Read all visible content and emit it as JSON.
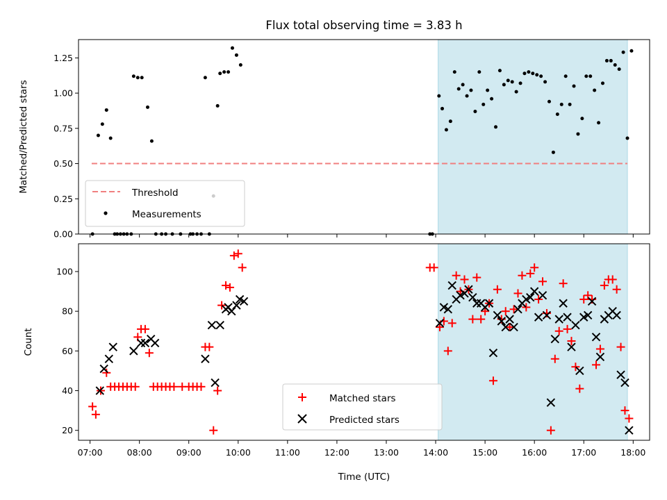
{
  "chart_data": [
    {
      "type": "scatter",
      "title": "Flux total observing time = 3.83 h",
      "xlabel": "",
      "ylabel": "Matched/Predicted stars",
      "xlim": [
        "06:46",
        "18:20"
      ],
      "ylim": [
        0,
        1.38
      ],
      "yticks": [
        0.0,
        0.25,
        0.5,
        0.75,
        1.0,
        1.25
      ],
      "grid": false,
      "legend_position": "lower-left",
      "highlight_span": {
        "start": "14:03",
        "end": "17:53",
        "color": "#add8e6"
      },
      "threshold": {
        "name": "Threshold",
        "value": 0.5,
        "start": "07:02",
        "end": "17:53",
        "color": "#f07f7f",
        "style": "dashed"
      },
      "series": [
        {
          "name": "Measurements",
          "color": "#000000",
          "marker": "dot",
          "points": [
            [
              "07:03",
              0.0
            ],
            [
              "07:10",
              0.7
            ],
            [
              "07:15",
              0.78
            ],
            [
              "07:20",
              0.88
            ],
            [
              "07:25",
              0.68
            ],
            [
              "07:30",
              0.0
            ],
            [
              "07:33",
              0.0
            ],
            [
              "07:37",
              0.0
            ],
            [
              "07:41",
              0.0
            ],
            [
              "07:45",
              0.0
            ],
            [
              "07:50",
              0.0
            ],
            [
              "07:53",
              1.12
            ],
            [
              "07:58",
              1.11
            ],
            [
              "08:03",
              1.11
            ],
            [
              "08:10",
              0.9
            ],
            [
              "08:15",
              0.66
            ],
            [
              "08:20",
              0.0
            ],
            [
              "08:27",
              0.0
            ],
            [
              "08:32",
              0.0
            ],
            [
              "08:40",
              0.0
            ],
            [
              "08:50",
              0.0
            ],
            [
              "09:02",
              0.0
            ],
            [
              "09:05",
              0.0
            ],
            [
              "09:10",
              0.0
            ],
            [
              "09:15",
              0.0
            ],
            [
              "09:20",
              1.11
            ],
            [
              "09:25",
              0.0
            ],
            [
              "09:30",
              0.27
            ],
            [
              "09:35",
              0.91
            ],
            [
              "09:38",
              1.14
            ],
            [
              "09:43",
              1.15
            ],
            [
              "09:48",
              1.15
            ],
            [
              "09:53",
              1.32
            ],
            [
              "09:58",
              1.27
            ],
            [
              "10:03",
              1.2
            ],
            [
              "13:53",
              0.0
            ],
            [
              "13:56",
              0.0
            ],
            [
              "14:04",
              0.98
            ],
            [
              "14:08",
              0.89
            ],
            [
              "14:13",
              0.74
            ],
            [
              "14:18",
              0.8
            ],
            [
              "14:23",
              1.15
            ],
            [
              "14:28",
              1.03
            ],
            [
              "14:33",
              1.06
            ],
            [
              "14:38",
              0.98
            ],
            [
              "14:43",
              1.02
            ],
            [
              "14:48",
              0.87
            ],
            [
              "14:53",
              1.15
            ],
            [
              "14:58",
              0.92
            ],
            [
              "15:03",
              1.02
            ],
            [
              "15:08",
              0.96
            ],
            [
              "15:13",
              0.76
            ],
            [
              "15:18",
              1.16
            ],
            [
              "15:23",
              1.06
            ],
            [
              "15:28",
              1.09
            ],
            [
              "15:33",
              1.08
            ],
            [
              "15:38",
              1.01
            ],
            [
              "15:43",
              1.07
            ],
            [
              "15:48",
              1.14
            ],
            [
              "15:53",
              1.15
            ],
            [
              "15:58",
              1.14
            ],
            [
              "16:03",
              1.13
            ],
            [
              "16:08",
              1.12
            ],
            [
              "16:13",
              1.08
            ],
            [
              "16:18",
              0.94
            ],
            [
              "16:23",
              0.58
            ],
            [
              "16:28",
              0.85
            ],
            [
              "16:33",
              0.92
            ],
            [
              "16:38",
              1.12
            ],
            [
              "16:43",
              0.92
            ],
            [
              "16:48",
              1.05
            ],
            [
              "16:53",
              0.71
            ],
            [
              "16:58",
              0.82
            ],
            [
              "17:03",
              1.12
            ],
            [
              "17:08",
              1.12
            ],
            [
              "17:13",
              1.02
            ],
            [
              "17:18",
              0.79
            ],
            [
              "17:23",
              1.07
            ],
            [
              "17:28",
              1.23
            ],
            [
              "17:33",
              1.23
            ],
            [
              "17:38",
              1.2
            ],
            [
              "17:43",
              1.17
            ],
            [
              "17:48",
              1.29
            ],
            [
              "17:53",
              0.68
            ],
            [
              "17:58",
              1.3
            ]
          ]
        }
      ]
    },
    {
      "type": "scatter",
      "title": "",
      "xlabel": "Time (UTC)",
      "ylabel": "Count",
      "xlim": [
        "06:46",
        "18:20"
      ],
      "ylim": [
        15,
        114
      ],
      "yticks": [
        20,
        40,
        60,
        80,
        100
      ],
      "xticks": [
        "07:00",
        "08:00",
        "09:00",
        "10:00",
        "11:00",
        "12:00",
        "13:00",
        "14:00",
        "15:00",
        "16:00",
        "17:00",
        "18:00"
      ],
      "grid": false,
      "legend_position": "lower-center",
      "highlight_span": {
        "start": "14:03",
        "end": "17:53",
        "color": "#add8e6"
      },
      "series": [
        {
          "name": "Matched stars",
          "color": "#ff0000",
          "marker": "plus",
          "points": [
            [
              "07:03",
              32
            ],
            [
              "07:07",
              28
            ],
            [
              "07:13",
              40
            ],
            [
              "07:20",
              49
            ],
            [
              "07:25",
              42
            ],
            [
              "07:30",
              42
            ],
            [
              "07:35",
              42
            ],
            [
              "07:40",
              42
            ],
            [
              "07:45",
              42
            ],
            [
              "07:50",
              42
            ],
            [
              "07:55",
              42
            ],
            [
              "07:58",
              67
            ],
            [
              "08:02",
              71
            ],
            [
              "08:07",
              71
            ],
            [
              "08:12",
              59
            ],
            [
              "08:17",
              42
            ],
            [
              "08:22",
              42
            ],
            [
              "08:27",
              42
            ],
            [
              "08:32",
              42
            ],
            [
              "08:37",
              42
            ],
            [
              "08:42",
              42
            ],
            [
              "08:52",
              42
            ],
            [
              "09:00",
              42
            ],
            [
              "09:05",
              42
            ],
            [
              "09:10",
              42
            ],
            [
              "09:15",
              42
            ],
            [
              "09:20",
              62
            ],
            [
              "09:25",
              62
            ],
            [
              "09:30",
              20
            ],
            [
              "09:35",
              40
            ],
            [
              "09:40",
              83
            ],
            [
              "09:45",
              93
            ],
            [
              "09:50",
              92
            ],
            [
              "09:55",
              108
            ],
            [
              "10:00",
              109
            ],
            [
              "10:05",
              102
            ],
            [
              "13:53",
              102
            ],
            [
              "13:58",
              102
            ],
            [
              "14:05",
              72
            ],
            [
              "14:10",
              75
            ],
            [
              "14:15",
              60
            ],
            [
              "14:20",
              74
            ],
            [
              "14:25",
              98
            ],
            [
              "14:30",
              90
            ],
            [
              "14:35",
              96
            ],
            [
              "14:40",
              91
            ],
            [
              "14:45",
              76
            ],
            [
              "14:50",
              97
            ],
            [
              "14:55",
              76
            ],
            [
              "15:00",
              80
            ],
            [
              "15:05",
              84
            ],
            [
              "15:10",
              45
            ],
            [
              "15:15",
              91
            ],
            [
              "15:20",
              76
            ],
            [
              "15:25",
              80
            ],
            [
              "15:30",
              72
            ],
            [
              "15:35",
              81
            ],
            [
              "15:40",
              89
            ],
            [
              "15:45",
              98
            ],
            [
              "15:50",
              82
            ],
            [
              "15:55",
              99
            ],
            [
              "16:00",
              102
            ],
            [
              "16:05",
              86
            ],
            [
              "16:10",
              95
            ],
            [
              "16:15",
              79
            ],
            [
              "16:20",
              20
            ],
            [
              "16:25",
              56
            ],
            [
              "16:30",
              70
            ],
            [
              "16:35",
              94
            ],
            [
              "16:40",
              71
            ],
            [
              "16:45",
              65
            ],
            [
              "16:50",
              52
            ],
            [
              "16:55",
              41
            ],
            [
              "17:00",
              86
            ],
            [
              "17:05",
              88
            ],
            [
              "17:10",
              86
            ],
            [
              "17:15",
              53
            ],
            [
              "17:20",
              61
            ],
            [
              "17:25",
              93
            ],
            [
              "17:30",
              96
            ],
            [
              "17:35",
              96
            ],
            [
              "17:40",
              91
            ],
            [
              "17:45",
              62
            ],
            [
              "17:50",
              30
            ],
            [
              "17:55",
              26
            ]
          ]
        },
        {
          "name": "Predicted stars",
          "color": "#000000",
          "marker": "x",
          "points": [
            [
              "07:12",
              40
            ],
            [
              "07:17",
              51
            ],
            [
              "07:23",
              56
            ],
            [
              "07:28",
              62
            ],
            [
              "07:53",
              60
            ],
            [
              "08:02",
              64
            ],
            [
              "08:07",
              64
            ],
            [
              "08:14",
              66
            ],
            [
              "08:19",
              64
            ],
            [
              "09:20",
              56
            ],
            [
              "09:28",
              73
            ],
            [
              "09:32",
              44
            ],
            [
              "09:38",
              73
            ],
            [
              "09:45",
              81
            ],
            [
              "09:48",
              82
            ],
            [
              "09:52",
              80
            ],
            [
              "09:58",
              83
            ],
            [
              "10:02",
              86
            ],
            [
              "10:07",
              85
            ],
            [
              "14:05",
              74
            ],
            [
              "14:10",
              82
            ],
            [
              "14:15",
              81
            ],
            [
              "14:20",
              93
            ],
            [
              "14:25",
              86
            ],
            [
              "14:30",
              88
            ],
            [
              "14:35",
              89
            ],
            [
              "14:40",
              91
            ],
            [
              "14:45",
              87
            ],
            [
              "14:50",
              84
            ],
            [
              "14:55",
              84
            ],
            [
              "15:00",
              82
            ],
            [
              "15:05",
              84
            ],
            [
              "15:10",
              59
            ],
            [
              "15:15",
              78
            ],
            [
              "15:20",
              75
            ],
            [
              "15:25",
              72
            ],
            [
              "15:30",
              76
            ],
            [
              "15:35",
              72
            ],
            [
              "15:40",
              81
            ],
            [
              "15:45",
              84
            ],
            [
              "15:50",
              86
            ],
            [
              "15:55",
              87
            ],
            [
              "16:00",
              90
            ],
            [
              "16:05",
              77
            ],
            [
              "16:10",
              88
            ],
            [
              "16:15",
              78
            ],
            [
              "16:20",
              34
            ],
            [
              "16:25",
              66
            ],
            [
              "16:30",
              76
            ],
            [
              "16:35",
              84
            ],
            [
              "16:40",
              77
            ],
            [
              "16:45",
              62
            ],
            [
              "16:50",
              73
            ],
            [
              "16:55",
              50
            ],
            [
              "17:00",
              77
            ],
            [
              "17:05",
              78
            ],
            [
              "17:10",
              85
            ],
            [
              "17:15",
              67
            ],
            [
              "17:20",
              57
            ],
            [
              "17:25",
              76
            ],
            [
              "17:30",
              78
            ],
            [
              "17:35",
              80
            ],
            [
              "17:40",
              78
            ],
            [
              "17:45",
              48
            ],
            [
              "17:50",
              44
            ],
            [
              "17:55",
              20
            ]
          ]
        }
      ]
    }
  ]
}
